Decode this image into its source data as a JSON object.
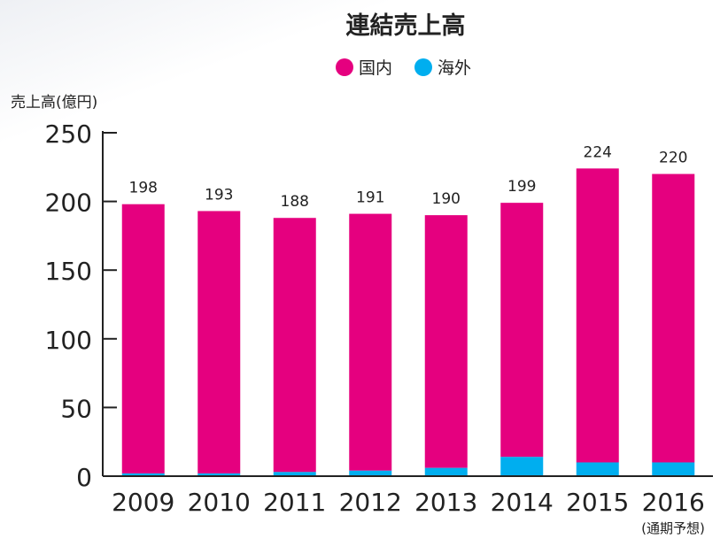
{
  "chart_data": {
    "type": "bar",
    "stacked": true,
    "title": "連結売上高",
    "ylabel": "売上高(億円)",
    "xlabel": "",
    "ylim": [
      0,
      250
    ],
    "yticks": [
      0,
      50,
      100,
      150,
      200,
      250
    ],
    "categories": [
      "2009",
      "2010",
      "2011",
      "2012",
      "2013",
      "2014",
      "2015",
      "2016"
    ],
    "category_note": "(通期予想)",
    "totals": [
      198,
      193,
      188,
      191,
      190,
      199,
      224,
      220
    ],
    "series": [
      {
        "name": "海外",
        "color": "#00aeef",
        "values": [
          2,
          2,
          3,
          4,
          6,
          14,
          10,
          10
        ]
      },
      {
        "name": "国内",
        "color": "#e5007f",
        "values": [
          196,
          191,
          185,
          187,
          184,
          185,
          214,
          210
        ]
      }
    ],
    "legend": [
      {
        "name": "国内",
        "color": "#e5007f"
      },
      {
        "name": "海外",
        "color": "#00aeef"
      }
    ]
  }
}
